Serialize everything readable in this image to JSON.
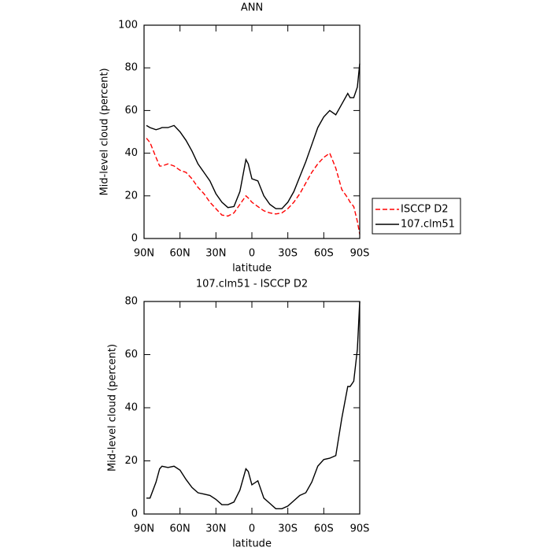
{
  "chart_data": [
    {
      "type": "line",
      "title": "ANN",
      "xlabel": "latitude",
      "ylabel": "Mid-level cloud (percent)",
      "x": [
        88,
        85,
        80,
        77,
        75,
        70,
        65,
        60,
        55,
        50,
        45,
        40,
        35,
        30,
        25,
        20,
        15,
        10,
        5,
        3,
        0,
        -5,
        -10,
        -15,
        -20,
        -25,
        -30,
        -35,
        -40,
        -45,
        -50,
        -55,
        -60,
        -65,
        -70,
        -75,
        -80,
        -82,
        -85,
        -88,
        -90
      ],
      "series": [
        {
          "name": "ISCCP D2",
          "color": "#ff0000",
          "linestyle": "dashed",
          "values": [
            47,
            45,
            38,
            34,
            34,
            35,
            34,
            32,
            31,
            28,
            24,
            21,
            17,
            14,
            11,
            10.5,
            12,
            16,
            20,
            19,
            17,
            15,
            13,
            12,
            11.5,
            12,
            14,
            17,
            21,
            26,
            31,
            35,
            38,
            40,
            33,
            23,
            19,
            17,
            15,
            8,
            2
          ]
        },
        {
          "name": "107.clm51",
          "color": "#000000",
          "linestyle": "solid",
          "values": [
            53,
            52,
            51,
            51.5,
            52,
            52,
            53,
            50,
            46,
            41,
            35,
            31,
            27,
            21,
            17,
            14.5,
            15,
            22,
            37,
            35,
            28,
            27,
            20,
            16,
            14,
            14,
            17,
            22,
            29,
            36,
            44,
            52,
            57,
            60,
            58,
            63,
            68,
            66,
            66,
            71,
            82
          ]
        }
      ],
      "xlim": [
        90,
        -90
      ],
      "xticks": [
        {
          "value": 90,
          "label": "90N"
        },
        {
          "value": 60,
          "label": "60N"
        },
        {
          "value": 30,
          "label": "30N"
        },
        0,
        {
          "value": -30,
          "label": "30S"
        },
        {
          "value": -60,
          "label": "60S"
        },
        {
          "value": -90,
          "label": "90S"
        }
      ],
      "ylim": [
        0,
        100
      ],
      "yticks": [
        0,
        20,
        40,
        60,
        80,
        100
      ],
      "legend": "outside-right"
    },
    {
      "type": "line",
      "title": "107.clm51 - ISCCP D2",
      "xlabel": "latitude",
      "ylabel": "Mid-level cloud (percent)",
      "x": [
        88,
        85,
        80,
        77,
        75,
        70,
        65,
        60,
        55,
        50,
        45,
        40,
        35,
        30,
        25,
        20,
        15,
        10,
        5,
        3,
        0,
        -5,
        -10,
        -15,
        -20,
        -25,
        -30,
        -35,
        -40,
        -45,
        -50,
        -55,
        -60,
        -65,
        -70,
        -75,
        -80,
        -82,
        -85,
        -88,
        -90
      ],
      "series": [
        {
          "color": "#000000",
          "linestyle": "solid",
          "values": [
            6,
            6,
            12,
            17,
            18,
            17.5,
            18,
            16.5,
            13,
            10,
            8,
            7.5,
            7,
            5.5,
            3.5,
            3.5,
            4.5,
            9,
            17,
            16,
            11,
            12.5,
            6,
            4,
            2,
            2,
            3,
            5,
            7,
            8,
            12,
            18,
            20.5,
            21,
            22,
            36,
            48,
            48,
            50,
            62,
            80
          ]
        }
      ],
      "xlim": [
        90,
        -90
      ],
      "xticks": [
        {
          "value": 90,
          "label": "90N"
        },
        {
          "value": 60,
          "label": "60N"
        },
        {
          "value": 30,
          "label": "30N"
        },
        0,
        {
          "value": -30,
          "label": "30S"
        },
        {
          "value": -60,
          "label": "60S"
        },
        {
          "value": -90,
          "label": "90S"
        }
      ],
      "ylim": [
        0,
        80
      ],
      "yticks": [
        0,
        20,
        40,
        60,
        80
      ]
    }
  ]
}
